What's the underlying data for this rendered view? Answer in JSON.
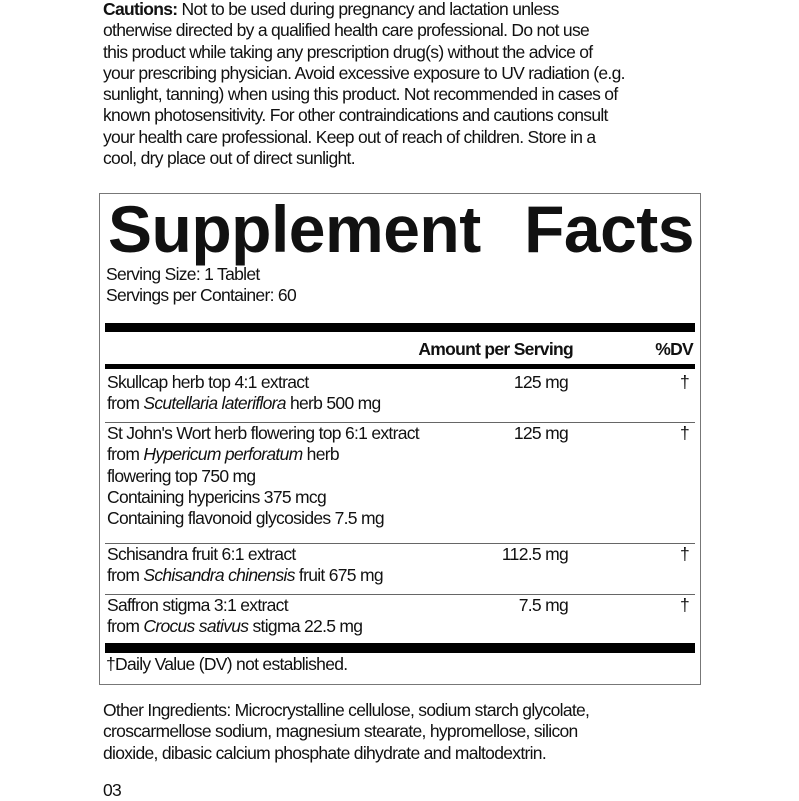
{
  "cautions": {
    "label": "Cautions:",
    "lines": [
      " Not to be used during pregnancy and lactation unless",
      "otherwise directed by a qualified health care professional. Do not use",
      "this product while taking any prescription drug(s) without the advice of",
      "your prescribing physician. Avoid excessive exposure to UV radiation (e.g.",
      "sunlight, tanning) when using this product. Not recommended in cases of",
      "known photosensitivity. For other contraindications and cautions consult",
      "your health care professional. Keep out of reach of children. Store in a",
      "cool, dry place out of direct sunlight."
    ]
  },
  "facts": {
    "title_word1": "Supplement",
    "title_word2": "Facts",
    "serving_size": "Serving Size: 1 Tablet",
    "servings_per_container": "Servings per Container: 60",
    "header_amount": "Amount per Serving",
    "header_dv": "%DV",
    "rows": [
      {
        "name": "Skullcap herb top 4:1 extract",
        "amount": "125 mg",
        "dv": "†",
        "sub": [
          {
            "pre": "from ",
            "ital": "Scutellaria lateriflora",
            "post": " herb 500 mg"
          }
        ]
      },
      {
        "name": "St John's Wort herb flowering top 6:1 extract",
        "amount": "125 mg",
        "dv": "†",
        "sub": [
          {
            "pre": "from ",
            "ital": "Hypericum perforatum",
            "post": " herb"
          },
          {
            "pre": "flowering top 750 mg"
          },
          {
            "pre": "Containing hypericins 375 mcg"
          },
          {
            "pre": "Containing flavonoid glycosides 7.5 mg"
          }
        ]
      },
      {
        "name": "Schisandra fruit 6:1 extract",
        "amount": "112.5 mg",
        "dv": "†",
        "sub": [
          {
            "pre": "from ",
            "ital": "Schisandra chinensis",
            "post": " fruit 675 mg"
          }
        ]
      },
      {
        "name": "Saffron stigma 3:1 extract",
        "amount": "7.5 mg",
        "dv": "†",
        "sub": [
          {
            "pre": "from ",
            "ital": "Crocus sativus",
            "post": " stigma 22.5 mg"
          }
        ]
      }
    ],
    "footnote": "†Daily Value (DV) not established."
  },
  "other_ingredients": {
    "lines": [
      "Other Ingredients: Microcrystalline cellulose, sodium starch glycolate,",
      "croscarmellose sodium, magnesium stearate, hypromellose, silicon",
      "dioxide, dibasic calcium phosphate dihydrate and maltodextrin."
    ]
  },
  "page_number": "03"
}
